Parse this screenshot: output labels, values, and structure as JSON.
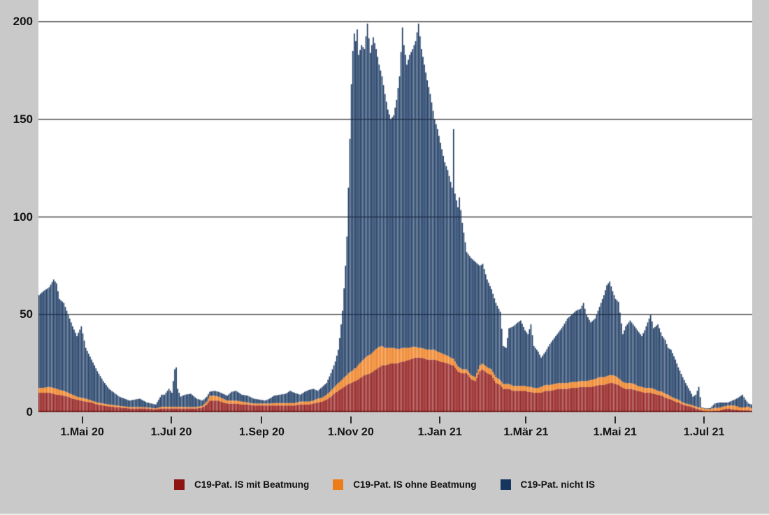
{
  "background_color": "#c9c9c9",
  "plot_bg_color": "#ffffff",
  "grid_color": "#5e5e5e",
  "y_axis": {
    "tick_values": [
      0,
      50,
      100,
      150,
      200
    ]
  },
  "x_axis": {
    "total_days": 489,
    "ticks": [
      {
        "day": 30,
        "label": "1.Mai 20"
      },
      {
        "day": 91,
        "label": "1.Jul 20"
      },
      {
        "day": 153,
        "label": "1.Sep 20"
      },
      {
        "day": 214,
        "label": "1.Nov 20"
      },
      {
        "day": 275,
        "label": "1.Jan 21"
      },
      {
        "day": 334,
        "label": "1.Mär 21"
      },
      {
        "day": 395,
        "label": "1.Mai 21"
      },
      {
        "day": 456,
        "label": "1.Jul 21"
      }
    ]
  },
  "legend": {
    "items": [
      {
        "label": "C19-Pat. IS mit Beatmung",
        "color": "#8e1414"
      },
      {
        "label": "C19-Pat. IS ohne Beatmung",
        "color": "#ed7c1a"
      },
      {
        "label": "C19-Pat. nicht IS",
        "color": "#16355f"
      }
    ]
  },
  "chart_data": {
    "type": "bar",
    "stacked": true,
    "grid": true,
    "legend_position": "bottom",
    "ylim": [
      0,
      211
    ],
    "x_start_label": "1.Apr 20",
    "x_end_label": "2.Aug 21",
    "series_names": [
      "C19-Pat. IS mit Beatmung",
      "C19-Pat. IS ohne Beatmung",
      "C19-Pat. nicht IS"
    ],
    "series_colors": [
      "#8e1414",
      "#ed7c1a",
      "#16355f"
    ],
    "anchor_format": [
      "day_index",
      "is_mit_beatmung",
      "is_ohne_beatmung",
      "nicht_is"
    ],
    "anchors": [
      [
        0,
        10,
        2.5,
        47.5
      ],
      [
        3,
        10,
        2.5,
        49.5
      ],
      [
        7,
        10,
        3,
        51
      ],
      [
        10,
        9.5,
        3,
        55.5
      ],
      [
        12,
        9,
        3,
        54
      ],
      [
        14,
        9,
        2.5,
        46.5
      ],
      [
        17,
        8.5,
        2.5,
        45
      ],
      [
        20,
        8,
        2,
        40
      ],
      [
        23,
        7,
        2,
        35
      ],
      [
        26,
        6.5,
        1.5,
        31
      ],
      [
        29,
        6,
        1.5,
        36.5
      ],
      [
        32,
        5.5,
        1.5,
        26
      ],
      [
        36,
        5,
        1,
        21
      ],
      [
        40,
        4,
        1,
        16
      ],
      [
        44,
        3.5,
        1,
        11.5
      ],
      [
        48,
        3,
        1,
        8
      ],
      [
        55,
        2.5,
        0.8,
        4.7
      ],
      [
        62,
        2,
        0.7,
        3.3
      ],
      [
        69,
        2,
        0.7,
        4.3
      ],
      [
        74,
        2,
        0.5,
        2.5
      ],
      [
        80,
        1.5,
        0.5,
        2
      ],
      [
        84,
        2,
        0.8,
        6.2
      ],
      [
        86,
        2,
        0.8,
        6.2
      ],
      [
        89,
        2,
        0.8,
        9.2
      ],
      [
        91,
        2,
        0.8,
        7.2
      ],
      [
        93,
        2,
        0.8,
        19.2
      ],
      [
        94,
        2,
        0.8,
        20.2
      ],
      [
        95,
        2,
        0.8,
        9.2
      ],
      [
        97,
        2,
        0.8,
        5.2
      ],
      [
        100,
        2,
        0.7,
        6.3
      ],
      [
        104,
        2,
        0.7,
        6.8
      ],
      [
        108,
        2,
        0.7,
        4.3
      ],
      [
        112,
        2.5,
        0.8,
        2.7
      ],
      [
        115,
        4,
        1.5,
        2.5
      ],
      [
        117,
        6,
        2.5,
        2
      ],
      [
        120,
        6,
        2.5,
        2.5
      ],
      [
        123,
        6,
        2,
        2.5
      ],
      [
        126,
        5,
        2,
        2.5
      ],
      [
        129,
        4.5,
        1.5,
        2.5
      ],
      [
        132,
        4.5,
        1.5,
        4.5
      ],
      [
        135,
        4.5,
        1.5,
        5
      ],
      [
        139,
        4,
        1.5,
        3.5
      ],
      [
        143,
        4,
        1,
        3.5
      ],
      [
        147,
        3.5,
        1,
        2.5
      ],
      [
        151,
        3.5,
        1,
        2
      ],
      [
        155,
        3.5,
        1,
        1.5
      ],
      [
        158,
        3.5,
        1,
        2.5
      ],
      [
        161,
        3.5,
        1.2,
        3.8
      ],
      [
        165,
        3.5,
        1.2,
        4.3
      ],
      [
        169,
        3.5,
        1.2,
        4.8
      ],
      [
        172,
        3.5,
        1.2,
        6.3
      ],
      [
        175,
        3.5,
        1.2,
        5.3
      ],
      [
        179,
        4,
        1.5,
        3.5
      ],
      [
        182,
        4,
        1.5,
        5
      ],
      [
        185,
        4,
        1.5,
        6
      ],
      [
        188,
        4.5,
        1.5,
        6
      ],
      [
        191,
        5,
        2,
        4
      ],
      [
        194,
        5.5,
        2,
        5.5
      ],
      [
        197,
        6.5,
        2.5,
        6
      ],
      [
        200,
        8,
        3,
        9
      ],
      [
        203,
        10,
        3.5,
        12.5
      ],
      [
        205,
        11,
        4,
        17
      ],
      [
        206,
        11.5,
        4,
        22.5
      ],
      [
        208,
        12.5,
        4.5,
        35
      ],
      [
        210,
        13.5,
        5,
        56.5
      ],
      [
        211,
        14,
        5,
        71
      ],
      [
        212,
        14.5,
        5.5,
        95
      ],
      [
        213,
        14.8,
        5.7,
        119.5
      ],
      [
        214,
        15,
        6,
        147
      ],
      [
        215,
        15.5,
        6,
        163.5
      ],
      [
        216,
        16,
        6.5,
        171.5
      ],
      [
        217,
        16,
        6.5,
        167.5
      ],
      [
        218,
        16.5,
        7,
        172.5
      ],
      [
        219,
        17,
        7.5,
        158.5
      ],
      [
        221,
        18,
        8,
        162
      ],
      [
        223,
        19,
        8.5,
        158.5
      ],
      [
        225,
        19.5,
        9.5,
        170
      ],
      [
        227,
        20,
        9.5,
        154.5
      ],
      [
        229,
        21,
        10,
        161
      ],
      [
        231,
        22,
        10.5,
        153.5
      ],
      [
        233,
        23,
        10.5,
        144.5
      ],
      [
        235,
        24,
        10,
        138
      ],
      [
        237,
        24,
        9,
        130
      ],
      [
        239,
        24.5,
        8.5,
        122
      ],
      [
        241,
        25,
        8,
        117
      ],
      [
        243,
        25,
        8,
        119
      ],
      [
        245,
        25,
        7.5,
        127.5
      ],
      [
        247,
        25.5,
        7,
        139.5
      ],
      [
        249,
        26,
        7,
        164
      ],
      [
        250,
        26,
        7,
        155
      ],
      [
        252,
        26.5,
        6.5,
        145
      ],
      [
        254,
        27,
        6,
        150
      ],
      [
        256,
        27.5,
        6,
        152.5
      ],
      [
        258,
        28,
        5.5,
        156.5
      ],
      [
        260,
        28,
        5,
        166
      ],
      [
        262,
        28,
        5,
        153
      ],
      [
        264,
        27.5,
        5,
        145.5
      ],
      [
        266,
        27,
        5,
        138
      ],
      [
        268,
        27,
        5,
        131
      ],
      [
        271,
        27,
        5,
        118
      ],
      [
        273,
        26.5,
        4.5,
        114
      ],
      [
        275,
        26,
        4.5,
        107.5
      ],
      [
        278,
        25.5,
        4,
        98.5
      ],
      [
        280,
        25,
        4,
        95
      ],
      [
        283,
        24,
        3.5,
        87.5
      ],
      [
        284,
        24,
        3.5,
        117.5
      ],
      [
        285,
        23,
        3,
        86
      ],
      [
        287,
        21,
        2.5,
        81.5
      ],
      [
        288,
        20.5,
        2.5,
        87
      ],
      [
        290,
        20,
        2,
        75
      ],
      [
        293,
        20,
        2,
        60
      ],
      [
        296,
        17,
        2,
        60
      ],
      [
        299,
        16,
        2,
        59
      ],
      [
        302,
        21,
        3,
        51
      ],
      [
        304,
        22,
        3,
        51
      ],
      [
        307,
        20,
        3,
        45
      ],
      [
        310,
        19,
        3,
        41
      ],
      [
        313,
        15,
        3,
        38
      ],
      [
        316,
        14,
        2.5,
        35
      ],
      [
        318,
        12,
        2.5,
        19.5
      ],
      [
        320,
        12,
        2.5,
        18.5
      ],
      [
        322,
        12,
        2.5,
        28.5
      ],
      [
        325,
        11,
        2.5,
        30.5
      ],
      [
        328,
        11,
        2.5,
        32.5
      ],
      [
        330,
        11,
        2.5,
        33.5
      ],
      [
        333,
        11,
        2.5,
        28.5
      ],
      [
        335,
        10.5,
        2.5,
        27
      ],
      [
        337,
        10.5,
        2.5,
        32
      ],
      [
        339,
        10,
        2.5,
        21.5
      ],
      [
        342,
        10,
        2.5,
        18.5
      ],
      [
        344,
        10,
        3,
        15
      ],
      [
        347,
        11,
        3,
        17
      ],
      [
        350,
        11,
        3,
        21
      ],
      [
        353,
        11.5,
        3,
        23.5
      ],
      [
        356,
        12,
        3,
        26
      ],
      [
        359,
        12,
        3,
        29
      ],
      [
        362,
        12,
        3,
        33
      ],
      [
        365,
        12.5,
        3,
        34.5
      ],
      [
        368,
        12.5,
        3,
        36.5
      ],
      [
        371,
        13,
        3,
        37
      ],
      [
        373,
        13,
        3,
        40
      ],
      [
        375,
        13,
        3,
        34
      ],
      [
        378,
        13,
        3.5,
        29.5
      ],
      [
        381,
        13.5,
        3.5,
        31
      ],
      [
        384,
        14,
        4,
        36
      ],
      [
        387,
        14,
        4,
        42
      ],
      [
        389,
        14.5,
        4,
        46.5
      ],
      [
        391,
        15,
        4,
        48
      ],
      [
        393,
        15,
        4,
        43
      ],
      [
        395,
        14.5,
        4,
        39.5
      ],
      [
        397,
        14,
        3.5,
        39
      ],
      [
        400,
        12.5,
        3,
        24.5
      ],
      [
        402,
        12,
        3,
        29
      ],
      [
        405,
        12,
        3,
        32
      ],
      [
        408,
        11.5,
        3,
        29.5
      ],
      [
        410,
        11,
        2.5,
        28.5
      ],
      [
        413,
        10.5,
        2.5,
        26
      ],
      [
        415,
        10,
        2.5,
        29.5
      ],
      [
        417,
        10,
        2.5,
        33.5
      ],
      [
        419,
        10,
        2.5,
        37.5
      ],
      [
        421,
        9.5,
        2.5,
        31
      ],
      [
        424,
        9,
        2,
        34
      ],
      [
        427,
        8.5,
        2,
        28.5
      ],
      [
        429,
        7.5,
        2,
        27.5
      ],
      [
        431,
        7,
        2,
        24
      ],
      [
        433,
        6.5,
        1.5,
        24
      ],
      [
        436,
        5.5,
        1.5,
        20
      ],
      [
        438,
        5,
        1.5,
        16.5
      ],
      [
        441,
        4,
        1,
        13
      ],
      [
        443,
        3.5,
        1,
        10.5
      ],
      [
        446,
        3,
        1,
        7
      ],
      [
        448,
        2.5,
        1,
        4.5
      ],
      [
        450,
        2,
        1,
        6
      ],
      [
        452,
        1.5,
        1,
        10.5
      ],
      [
        454,
        1,
        1.2,
        0.3
      ],
      [
        457,
        0.5,
        1.2,
        0.3
      ],
      [
        460,
        0.5,
        1.2,
        0.5
      ],
      [
        463,
        0.8,
        1.5,
        2.2
      ],
      [
        466,
        0.8,
        1.5,
        2.7
      ],
      [
        469,
        1.5,
        1.5,
        2
      ],
      [
        472,
        2,
        1.5,
        1.5
      ],
      [
        475,
        1.5,
        2,
        2.5
      ],
      [
        478,
        1.2,
        2,
        3.8
      ],
      [
        480,
        1,
        1.5,
        5.5
      ],
      [
        482,
        1,
        1.5,
        6.5
      ],
      [
        484,
        1,
        1.5,
        4
      ],
      [
        486,
        1,
        2,
        1.5
      ],
      [
        488,
        0.8,
        1.2,
        2
      ]
    ]
  }
}
